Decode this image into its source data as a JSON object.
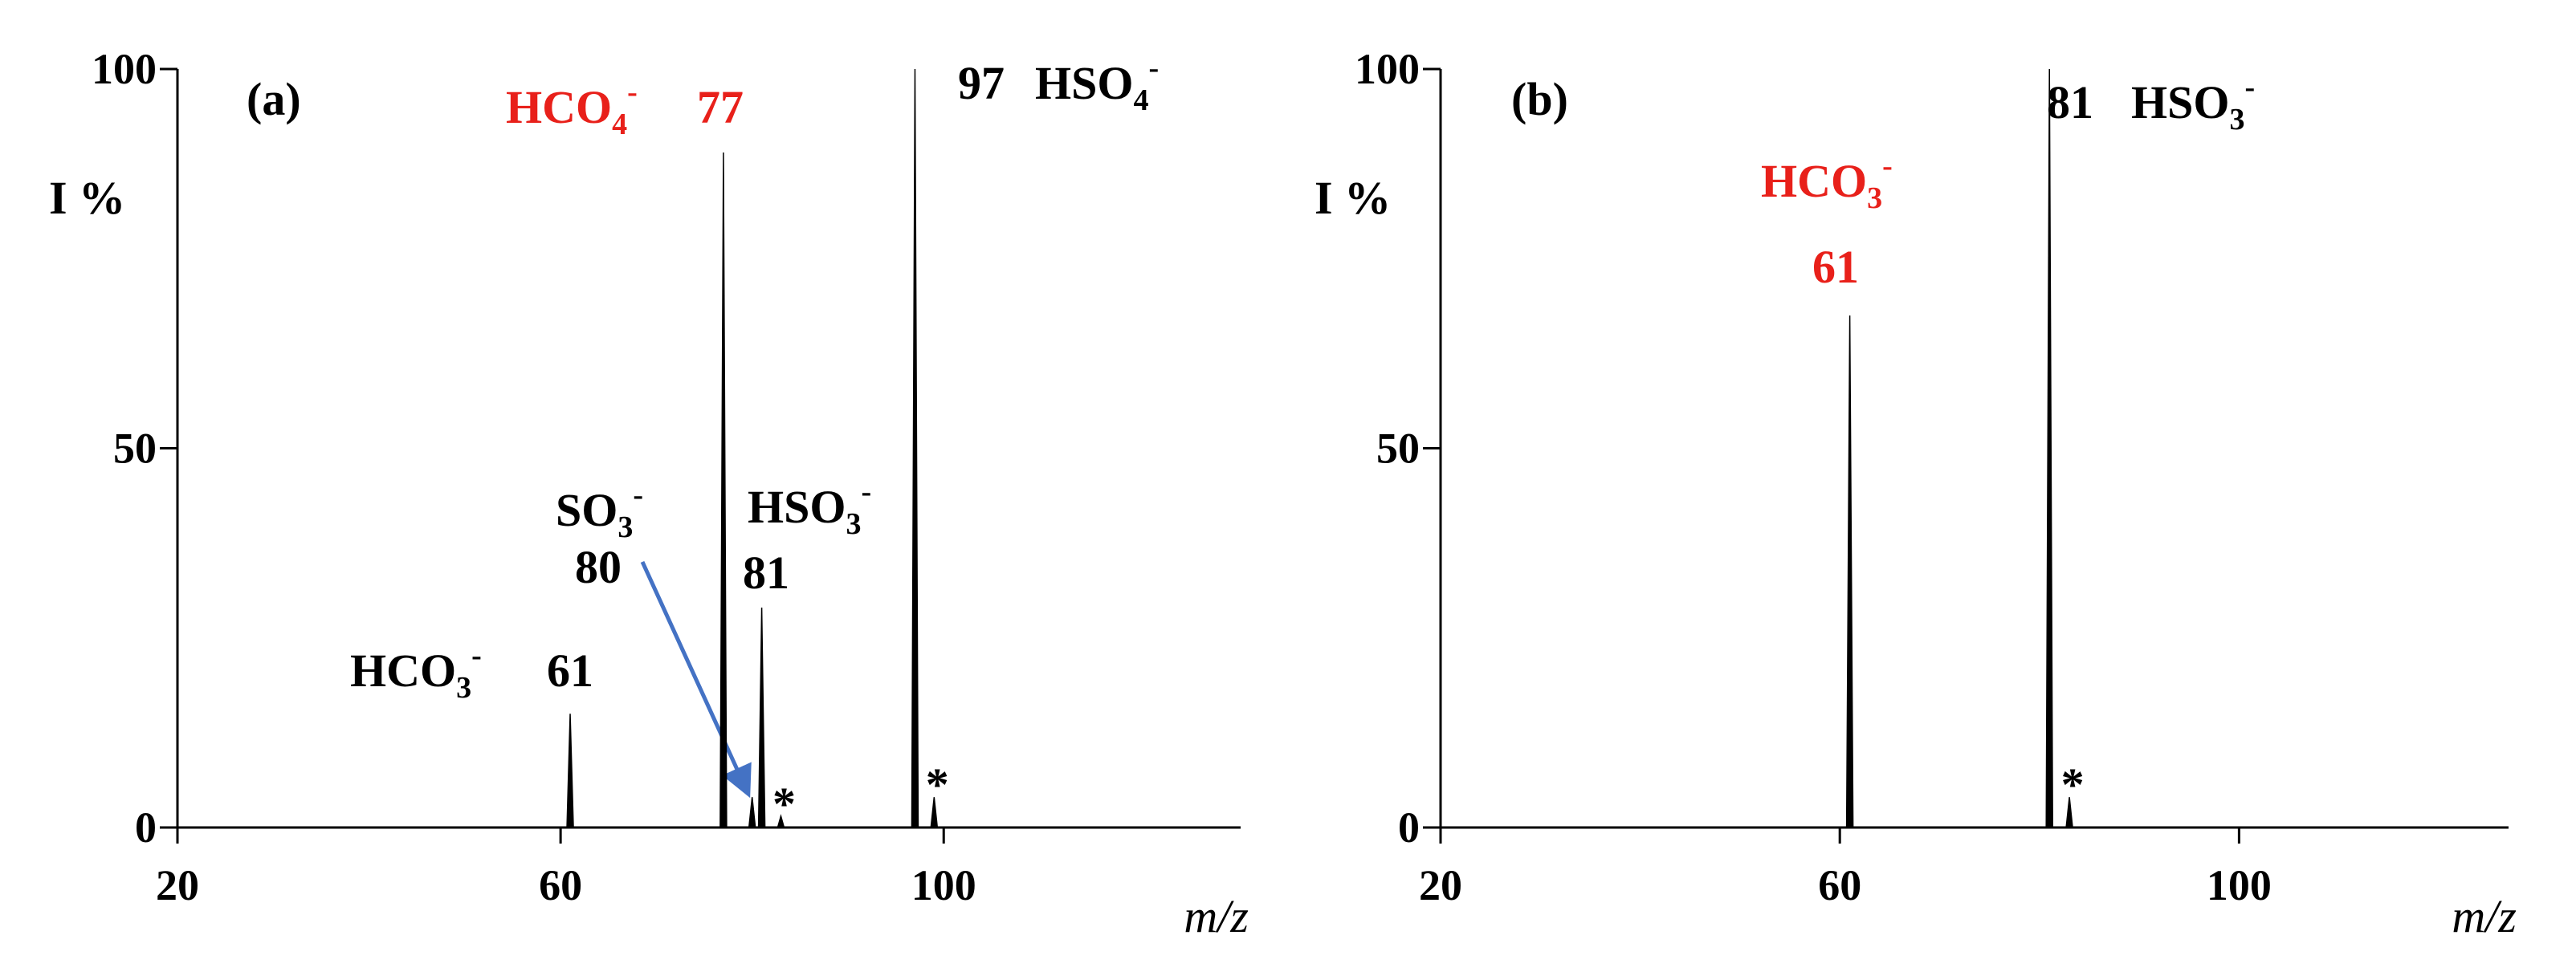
{
  "chart_data": [
    {
      "type": "spectrum",
      "panel": "(a)",
      "ylabel": "I %",
      "xlabel": "m/z",
      "color": "#000000",
      "x": [
        61,
        77,
        80,
        81,
        83,
        97,
        99
      ],
      "values": [
        15,
        89,
        4,
        29,
        1.5,
        100,
        4
      ],
      "xlim": [
        20,
        131
      ],
      "ylim": [
        0,
        100
      ],
      "xticks": [
        20,
        60,
        100
      ],
      "yticks": [
        0,
        50,
        100
      ],
      "annotations": [
        {
          "ion": "HCO",
          "sub": "4",
          "sup": "-",
          "mz": 77,
          "color": "#e8201a"
        },
        {
          "ion": "HSO",
          "sub": "4",
          "sup": "-",
          "mz": 97,
          "color": "#000000"
        },
        {
          "ion": "SO",
          "sub": "3",
          "sup": "-",
          "mz": 80,
          "color": "#000000"
        },
        {
          "ion": "HSO",
          "sub": "3",
          "sup": "-",
          "mz": 81,
          "color": "#000000"
        },
        {
          "ion": "HCO",
          "sub": "3",
          "sup": "-",
          "mz": 61,
          "color": "#000000"
        }
      ],
      "notes": [
        {
          "text": "*",
          "x": 83
        },
        {
          "text": "*",
          "x": 99
        }
      ]
    },
    {
      "type": "spectrum",
      "panel": "(b)",
      "ylabel": "I %",
      "xlabel": "m/z",
      "color": "#000000",
      "x": [
        61,
        81,
        83
      ],
      "values": [
        67.5,
        100,
        4
      ],
      "xlim": [
        20,
        127
      ],
      "ylim": [
        0,
        100
      ],
      "xticks": [
        20,
        60,
        100
      ],
      "yticks": [
        0,
        50,
        100
      ],
      "annotations": [
        {
          "ion": "HCO",
          "sub": "3",
          "sup": "-",
          "mz": 61,
          "color": "#e8201a"
        },
        {
          "ion": "HSO",
          "sub": "3",
          "sup": "-",
          "mz": 81,
          "color": "#000000"
        }
      ],
      "notes": [
        {
          "text": "*",
          "x": 83
        }
      ]
    }
  ]
}
